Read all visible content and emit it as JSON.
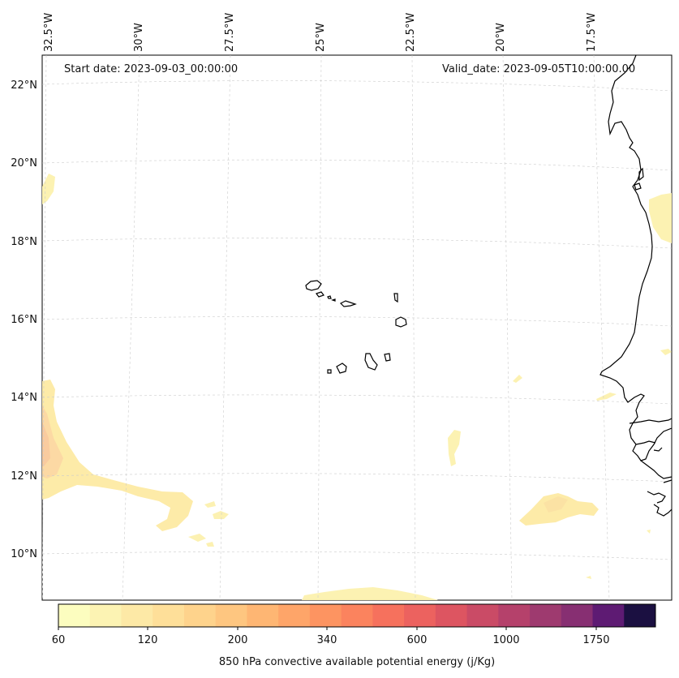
{
  "header": {
    "start_date": "Start date: 2023-09-03_00:00:00",
    "valid_date": "Valid_date: 2023-09-05T10:00:00.00"
  },
  "axes": {
    "lon_labels": [
      "32.5°W",
      "30°W",
      "27.5°W",
      "25°W",
      "22.5°W",
      "20°W",
      "17.5°W"
    ],
    "lat_labels": [
      "22°N",
      "20°N",
      "18°N",
      "16°N",
      "14°N",
      "12°N",
      "10°N"
    ],
    "gridlines": true,
    "lon_range": [
      -33,
      -16
    ],
    "lat_range": [
      8.8,
      22.8
    ]
  },
  "colorbar": {
    "label": "850 hPa convective available potential energy (j/Kg)",
    "tick_labels": [
      "60",
      "120",
      "200",
      "340",
      "600",
      "1000",
      "1750"
    ],
    "levels": [
      60,
      80,
      100,
      120,
      140,
      160,
      200,
      240,
      280,
      340,
      400,
      480,
      600,
      700,
      850,
      1000,
      1200,
      1450,
      1750,
      2100
    ],
    "colors": [
      "#fcfdbf",
      "#fcf3b3",
      "#fde9a6",
      "#fedf99",
      "#fed38c",
      "#fec680",
      "#feb673",
      "#fea569",
      "#fd9461",
      "#fb835e",
      "#f6715d",
      "#ec625f",
      "#dd5561",
      "#ca4b66",
      "#b5416b",
      "#9e3a6f",
      "#872f72",
      "#5e1b73",
      "#1b1041"
    ],
    "extend": "neither",
    "orientation": "horizontal"
  },
  "map": {
    "region": "Cabo Verde and West African coast",
    "coastline_color": "#000000",
    "cape_color": "#fcf0ac"
  }
}
